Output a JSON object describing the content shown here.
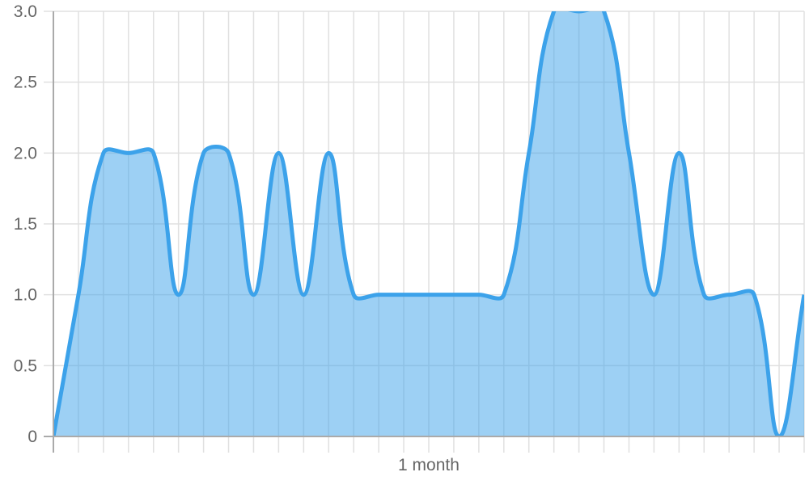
{
  "chart_data": {
    "type": "area",
    "title": "",
    "xlabel": "1 month",
    "ylabel": "",
    "ylim": [
      0,
      3
    ],
    "yticks": [
      "0",
      "0.5",
      "1.0",
      "1.5",
      "2.0",
      "2.5",
      "3.0"
    ],
    "grid": true,
    "legend": "none",
    "series": [
      {
        "values": [
          0,
          1,
          2,
          2,
          2,
          1,
          2,
          2,
          1,
          2,
          1,
          2,
          1,
          1,
          1,
          1,
          1,
          1,
          1,
          2,
          3,
          3,
          3,
          2,
          1,
          2,
          1,
          1,
          1,
          0,
          1
        ]
      }
    ],
    "colors": {
      "line": "#3ca2ea",
      "fill": "rgba(60,162,234,0.5)",
      "grid": "#e0e0e0",
      "axis": "#aaaaaa"
    }
  }
}
